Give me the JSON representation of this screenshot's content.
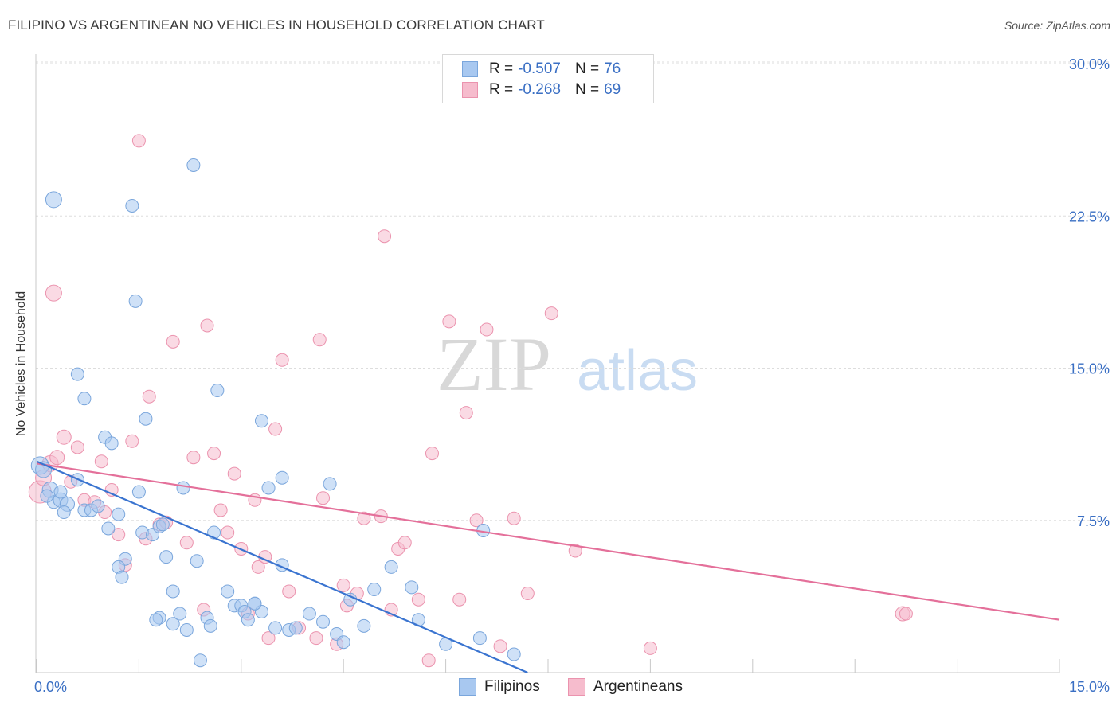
{
  "title": "FILIPINO VS ARGENTINEAN NO VEHICLES IN HOUSEHOLD CORRELATION CHART",
  "source": "Source: ZipAtlas.com",
  "watermark": {
    "zip": "ZIP",
    "atlas": "atlas"
  },
  "colors": {
    "filipinos_fill": "#a8c8f0",
    "filipinos_stroke": "#7aa6dc",
    "filipinos_line": "#3a74d0",
    "argentineans_fill": "#f6bccd",
    "argentineans_stroke": "#eb93ae",
    "argentineans_line": "#e4709a",
    "tick_label": "#3a6fc4",
    "grid": "#dddddd"
  },
  "stats": [
    {
      "r_label": "R =",
      "r_value": "-0.507",
      "n_label": "N =",
      "n_value": "76"
    },
    {
      "r_label": "R =",
      "r_value": "-0.268",
      "n_label": "N =",
      "n_value": "69"
    }
  ],
  "legend": [
    "Filipinos",
    "Argentineans"
  ],
  "chart_data": {
    "type": "scatter",
    "title": "FILIPINO VS ARGENTINEAN NO VEHICLES IN HOUSEHOLD CORRELATION CHART",
    "xlabel": "",
    "ylabel": "No Vehicles in Household",
    "xlim": [
      0,
      15
    ],
    "ylim": [
      0,
      30
    ],
    "x_tick_labels": [
      "0.0%",
      "15.0%"
    ],
    "y_ticks": [
      7.5,
      15,
      22.5,
      30
    ],
    "y_tick_labels": [
      "7.5%",
      "15.0%",
      "22.5%",
      "30.0%"
    ],
    "grid": "horizontal dashed",
    "legend_position": "bottom-center",
    "series": [
      {
        "name": "Filipinos",
        "r": -0.507,
        "n": 76,
        "trend": {
          "x": [
            0.0,
            7.2
          ],
          "y": [
            10.4,
            0.0
          ]
        },
        "points": [
          [
            0.05,
            10.2,
            11
          ],
          [
            0.1,
            10.0,
            10
          ],
          [
            0.2,
            9.0,
            10
          ],
          [
            0.25,
            8.4,
            8
          ],
          [
            0.35,
            8.5,
            9
          ],
          [
            0.45,
            8.3,
            9
          ],
          [
            0.6,
            9.5,
            8
          ],
          [
            0.7,
            8.0,
            8
          ],
          [
            0.8,
            8.0,
            8
          ],
          [
            0.9,
            8.2,
            8
          ],
          [
            0.25,
            23.3,
            10
          ],
          [
            0.6,
            14.7,
            8
          ],
          [
            0.7,
            13.5,
            8
          ],
          [
            1.0,
            11.6,
            8
          ],
          [
            1.1,
            11.3,
            8
          ],
          [
            1.2,
            7.8,
            8
          ],
          [
            1.05,
            7.1,
            8
          ],
          [
            1.5,
            8.9,
            8
          ],
          [
            1.55,
            6.9,
            8
          ],
          [
            1.7,
            6.8,
            8
          ],
          [
            1.4,
            23.0,
            8
          ],
          [
            1.45,
            18.3,
            8
          ],
          [
            1.6,
            12.5,
            8
          ],
          [
            1.3,
            5.6,
            8
          ],
          [
            1.2,
            5.2,
            8
          ],
          [
            1.25,
            4.7,
            8
          ],
          [
            1.8,
            7.2,
            8
          ],
          [
            1.9,
            5.7,
            8
          ],
          [
            2.0,
            4.0,
            8
          ],
          [
            1.8,
            2.7,
            8
          ],
          [
            2.0,
            2.4,
            8
          ],
          [
            2.1,
            2.9,
            8
          ],
          [
            2.2,
            2.1,
            8
          ],
          [
            2.15,
            9.1,
            8
          ],
          [
            2.3,
            25.0,
            8
          ],
          [
            2.35,
            5.5,
            8
          ],
          [
            2.5,
            2.7,
            8
          ],
          [
            2.55,
            2.3,
            8
          ],
          [
            2.6,
            6.9,
            8
          ],
          [
            2.65,
            13.9,
            8
          ],
          [
            2.8,
            4.0,
            8
          ],
          [
            2.9,
            3.3,
            8
          ],
          [
            3.0,
            3.3,
            8
          ],
          [
            3.05,
            3.0,
            8
          ],
          [
            3.1,
            2.6,
            8
          ],
          [
            2.4,
            0.6,
            8
          ],
          [
            3.2,
            3.4,
            8
          ],
          [
            3.3,
            3.0,
            8
          ],
          [
            3.5,
            2.2,
            8
          ],
          [
            3.4,
            9.1,
            8
          ],
          [
            3.6,
            5.3,
            8
          ],
          [
            3.7,
            2.1,
            8
          ],
          [
            3.8,
            2.2,
            8
          ],
          [
            3.3,
            12.4,
            8
          ],
          [
            3.6,
            9.6,
            8
          ],
          [
            4.0,
            2.9,
            8
          ],
          [
            4.2,
            2.5,
            8
          ],
          [
            4.4,
            1.9,
            8
          ],
          [
            4.5,
            1.5,
            8
          ],
          [
            4.6,
            3.6,
            8
          ],
          [
            4.3,
            9.3,
            8
          ],
          [
            4.8,
            2.3,
            8
          ],
          [
            4.95,
            4.1,
            8
          ],
          [
            5.2,
            5.2,
            8
          ],
          [
            5.5,
            4.2,
            8
          ],
          [
            5.6,
            2.6,
            8
          ],
          [
            6.0,
            1.4,
            8
          ],
          [
            6.5,
            1.7,
            8
          ],
          [
            6.55,
            7.0,
            8
          ],
          [
            7.0,
            0.9,
            8
          ],
          [
            0.15,
            8.7,
            8
          ],
          [
            0.35,
            8.9,
            8
          ],
          [
            3.2,
            3.4,
            8
          ],
          [
            1.85,
            7.3,
            8
          ],
          [
            0.4,
            7.9,
            8
          ],
          [
            1.75,
            2.6,
            8
          ]
        ]
      },
      {
        "name": "Argentineans",
        "r": -0.268,
        "n": 69,
        "trend": {
          "x": [
            0.0,
            15.0
          ],
          "y": [
            10.3,
            2.6
          ]
        },
        "points": [
          [
            0.05,
            8.9,
            14
          ],
          [
            0.1,
            9.6,
            10
          ],
          [
            0.2,
            10.3,
            10
          ],
          [
            0.3,
            10.6,
            9
          ],
          [
            0.4,
            11.6,
            9
          ],
          [
            0.5,
            9.4,
            8
          ],
          [
            0.6,
            11.1,
            8
          ],
          [
            0.7,
            8.5,
            8
          ],
          [
            0.85,
            8.4,
            8
          ],
          [
            0.95,
            10.4,
            8
          ],
          [
            1.0,
            7.9,
            8
          ],
          [
            1.1,
            9.0,
            8
          ],
          [
            1.2,
            6.8,
            8
          ],
          [
            1.3,
            5.3,
            8
          ],
          [
            1.4,
            11.4,
            8
          ],
          [
            0.25,
            18.7,
            10
          ],
          [
            1.5,
            26.2,
            8
          ],
          [
            1.6,
            6.6,
            8
          ],
          [
            1.65,
            13.6,
            8
          ],
          [
            1.8,
            7.3,
            8
          ],
          [
            1.9,
            7.4,
            8
          ],
          [
            2.0,
            16.3,
            8
          ],
          [
            2.2,
            6.4,
            8
          ],
          [
            2.3,
            10.6,
            8
          ],
          [
            2.45,
            3.1,
            8
          ],
          [
            2.5,
            17.1,
            8
          ],
          [
            2.6,
            10.8,
            8
          ],
          [
            2.7,
            8.0,
            8
          ],
          [
            2.8,
            6.9,
            8
          ],
          [
            2.9,
            9.8,
            8
          ],
          [
            3.0,
            6.1,
            8
          ],
          [
            3.1,
            2.9,
            8
          ],
          [
            3.2,
            8.5,
            8
          ],
          [
            3.25,
            5.2,
            8
          ],
          [
            3.35,
            5.7,
            8
          ],
          [
            3.4,
            1.7,
            8
          ],
          [
            3.5,
            12.0,
            8
          ],
          [
            3.6,
            15.4,
            8
          ],
          [
            3.7,
            4.0,
            8
          ],
          [
            3.85,
            2.2,
            8
          ],
          [
            4.1,
            1.7,
            8
          ],
          [
            4.15,
            16.4,
            8
          ],
          [
            4.2,
            8.6,
            8
          ],
          [
            4.4,
            1.4,
            8
          ],
          [
            4.5,
            4.3,
            8
          ],
          [
            4.55,
            3.3,
            8
          ],
          [
            4.7,
            3.9,
            8
          ],
          [
            4.8,
            7.6,
            8
          ],
          [
            5.05,
            7.7,
            8
          ],
          [
            5.1,
            21.5,
            8
          ],
          [
            5.2,
            3.1,
            8
          ],
          [
            5.3,
            6.1,
            8
          ],
          [
            5.4,
            6.4,
            8
          ],
          [
            5.6,
            3.6,
            8
          ],
          [
            5.75,
            0.6,
            8
          ],
          [
            5.8,
            10.8,
            8
          ],
          [
            6.05,
            17.3,
            8
          ],
          [
            6.2,
            3.6,
            8
          ],
          [
            6.3,
            12.8,
            8
          ],
          [
            6.45,
            7.5,
            8
          ],
          [
            6.6,
            16.9,
            8
          ],
          [
            6.8,
            1.3,
            8
          ],
          [
            7.0,
            7.6,
            8
          ],
          [
            7.2,
            3.9,
            8
          ],
          [
            7.55,
            17.7,
            8
          ],
          [
            7.9,
            6.0,
            8
          ],
          [
            9.0,
            1.2,
            8
          ],
          [
            12.7,
            2.9,
            9
          ],
          [
            12.75,
            2.9,
            8
          ]
        ]
      }
    ]
  }
}
